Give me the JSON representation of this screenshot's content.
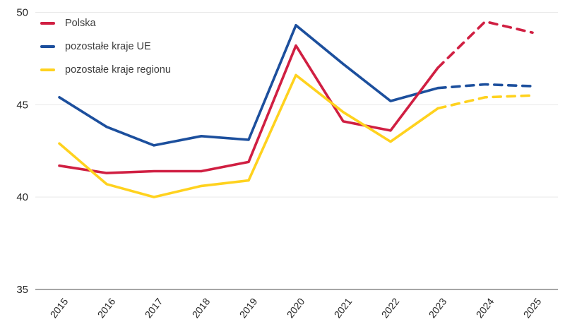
{
  "chart_data": {
    "type": "line",
    "x": [
      "2015",
      "2016",
      "2017",
      "2018",
      "2019",
      "2020",
      "2021",
      "2022",
      "2023",
      "2024",
      "2025"
    ],
    "ylim": [
      35,
      50
    ],
    "yticks": [
      35,
      40,
      45,
      50
    ],
    "grid": "horizontal-light-gray",
    "legend_position": "top-left-inside",
    "dashed_from_index": 8,
    "line_style_note": "solid 2015-2023, dashed 2023-2025",
    "series": [
      {
        "id": "polska",
        "name": "Polska",
        "color": "#D01F42",
        "values": [
          41.7,
          41.3,
          41.4,
          41.4,
          41.9,
          48.2,
          44.1,
          43.6,
          47.0,
          49.5,
          48.9
        ]
      },
      {
        "id": "pozostale-kraje-ue",
        "name": "pozostałe kraje UE",
        "color": "#1C4F9D",
        "values": [
          45.4,
          43.8,
          42.8,
          43.3,
          43.1,
          49.3,
          47.2,
          45.2,
          45.9,
          46.1,
          46.0
        ]
      },
      {
        "id": "pozostale-kraje-regionu",
        "name": "pozostałe kraje regionu",
        "color": "#FFD21E",
        "values": [
          42.9,
          40.7,
          40.0,
          40.6,
          40.9,
          46.6,
          44.6,
          43.0,
          44.8,
          45.4,
          45.5
        ]
      }
    ],
    "colors": {
      "axis_line": "#A6A6A6",
      "gridline": "#E9E9E9",
      "tick_text": "#262626"
    }
  }
}
